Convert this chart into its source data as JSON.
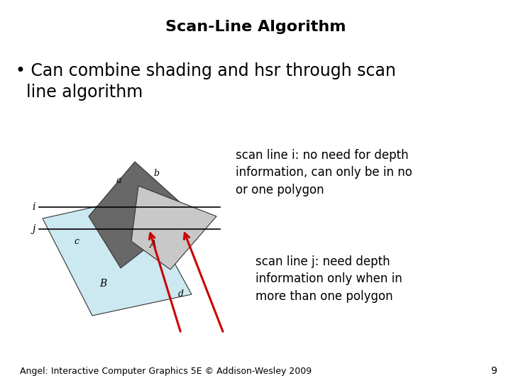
{
  "title": "Scan-Line Algorithm",
  "title_fontsize": 16,
  "title_fontweight": "bold",
  "bullet_line1": "• Can combine shading and hsr through scan",
  "bullet_line2": "  line algorithm",
  "bullet_fontsize": 17,
  "annotation_i": "scan line i: no need for depth\ninformation, can only be in no\nor one polygon",
  "annotation_j": "scan line j: need depth\ninformation only when in\nmore than one polygon",
  "annotation_fontsize": 12,
  "footer": "Angel: Interactive Computer Graphics 5E © Addison-Wesley 2009",
  "footer_fontsize": 9,
  "page_number": "9",
  "bg_color": "#ffffff",
  "dark_gray": "#686868",
  "light_gray": "#c8c8c8",
  "light_blue": "#cce8f0",
  "arrow_color": "#cc0000"
}
